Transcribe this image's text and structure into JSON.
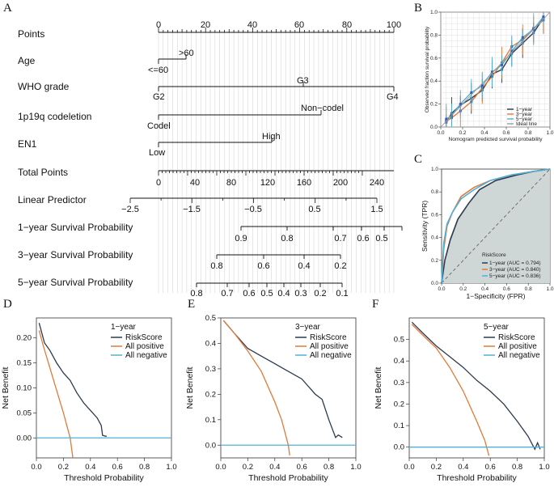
{
  "panels": {
    "A": "A",
    "B": "B",
    "C": "C",
    "D": "D",
    "E": "E",
    "F": "F"
  },
  "nomogram": {
    "points": {
      "label": "Points",
      "ticks": [
        "0",
        "20",
        "40",
        "60",
        "80",
        "100"
      ]
    },
    "age": {
      "label": "Age",
      "levels": [
        ">60",
        "<=60"
      ]
    },
    "who": {
      "label": "WHO grade",
      "levels": [
        "G2",
        "G3",
        "G4"
      ]
    },
    "codel": {
      "label": "1p19q codeletion",
      "levels": [
        "Codel",
        "Non−codel"
      ]
    },
    "en1": {
      "label": "EN1",
      "levels": [
        "Low",
        "High"
      ]
    },
    "total": {
      "label": "Total Points",
      "ticks": [
        "0",
        "40",
        "80",
        "120",
        "160",
        "200",
        "240"
      ]
    },
    "linear": {
      "label": "Linear Predictor",
      "ticks": [
        "−2.5",
        "−1.5",
        "−0.5",
        "0.5",
        "1.5"
      ]
    },
    "surv1": {
      "label": "1−year Survival Probability",
      "ticks": [
        "0.9",
        "0.8",
        "0.7",
        "0.6",
        "0.5"
      ]
    },
    "surv3": {
      "label": "3−year Survival Probability",
      "ticks": [
        "0.8",
        "0.6",
        "0.4",
        "0.2"
      ]
    },
    "surv5": {
      "label": "5−year Survival Probability",
      "ticks": [
        "0.8",
        "0.7",
        "0.6",
        "0.5",
        "0.4",
        "0.3",
        "0.2",
        "0.1"
      ]
    }
  },
  "chart_data": [
    {
      "id": "B",
      "type": "line",
      "title": "",
      "xlabel": "Nomogram predicted survival probability",
      "ylabel": "Observed fraction survival probability",
      "xlim": [
        0,
        1
      ],
      "ylim": [
        0,
        1
      ],
      "xticks": [
        "0.0",
        "0.2",
        "0.4",
        "0.6",
        "0.8",
        "1.0"
      ],
      "yticks": [
        "0.0",
        "0.2",
        "0.4",
        "0.6",
        "0.8",
        "1.0"
      ],
      "legend": [
        "1−year",
        "3−year",
        "5−year",
        "Ideal line"
      ],
      "series": [
        {
          "name": "1−year",
          "color": "#2b3a4d",
          "x": [
            0.05,
            0.1,
            0.18,
            0.28,
            0.38,
            0.47,
            0.56,
            0.65,
            0.75,
            0.85,
            0.94
          ],
          "y": [
            0.04,
            0.12,
            0.19,
            0.25,
            0.32,
            0.46,
            0.5,
            0.64,
            0.73,
            0.82,
            0.95
          ]
        },
        {
          "name": "3−year",
          "color": "#e07b39",
          "x": [
            0.05,
            0.1,
            0.18,
            0.28,
            0.38,
            0.47,
            0.56,
            0.65,
            0.75,
            0.85,
            0.94
          ],
          "y": [
            0.05,
            0.08,
            0.14,
            0.22,
            0.34,
            0.44,
            0.56,
            0.7,
            0.76,
            0.86,
            0.93
          ]
        },
        {
          "name": "5−year",
          "color": "#4fb0d8",
          "x": [
            0.05,
            0.1,
            0.18,
            0.28,
            0.38,
            0.47,
            0.56,
            0.65,
            0.75,
            0.85,
            0.94
          ],
          "y": [
            0.07,
            0.1,
            0.2,
            0.3,
            0.36,
            0.48,
            0.54,
            0.66,
            0.78,
            0.85,
            0.96
          ]
        },
        {
          "name": "Ideal line",
          "color": "#999999",
          "x": [
            0,
            1
          ],
          "y": [
            0,
            1
          ]
        }
      ]
    },
    {
      "id": "C",
      "type": "line",
      "title": "",
      "xlabel": "1−Specificity (FPR)",
      "ylabel": "Sensitivity (TPR)",
      "xlim": [
        0,
        1
      ],
      "ylim": [
        0,
        1
      ],
      "xticks": [
        "0.0",
        "0.2",
        "0.4",
        "0.6",
        "0.8",
        "1.0"
      ],
      "yticks": [
        "0.0",
        "0.2",
        "0.4",
        "0.6",
        "0.8",
        "1.0"
      ],
      "legend_title": "RiskScore",
      "series": [
        {
          "name": "1−year (AUC = 0.794)",
          "color": "#2b3a4d",
          "x": [
            0,
            0.03,
            0.08,
            0.15,
            0.25,
            0.35,
            0.5,
            0.7,
            0.85,
            1.0
          ],
          "y": [
            0,
            0.2,
            0.38,
            0.56,
            0.7,
            0.82,
            0.9,
            0.95,
            0.98,
            1.0
          ]
        },
        {
          "name": "3−year (AUC = 0.840)",
          "color": "#e07b39",
          "x": [
            0,
            0.02,
            0.05,
            0.1,
            0.18,
            0.3,
            0.45,
            0.65,
            0.85,
            1.0
          ],
          "y": [
            0,
            0.3,
            0.5,
            0.62,
            0.76,
            0.84,
            0.9,
            0.95,
            0.98,
            1.0
          ]
        },
        {
          "name": "5−year (AUC = 0.836)",
          "color": "#4fb0d8",
          "x": [
            0,
            0.02,
            0.05,
            0.1,
            0.18,
            0.3,
            0.45,
            0.65,
            0.85,
            1.0
          ],
          "y": [
            0,
            0.35,
            0.52,
            0.62,
            0.74,
            0.82,
            0.9,
            0.95,
            0.98,
            1.0
          ]
        }
      ]
    },
    {
      "id": "D",
      "type": "line",
      "title": "1−year",
      "xlabel": "Threshold Probability",
      "ylabel": "Net Benefit",
      "xlim": [
        0,
        1
      ],
      "ylim": [
        -0.04,
        0.24
      ],
      "xticks": [
        0,
        0.2,
        0.4,
        0.6,
        0.8,
        1.0
      ],
      "yticks": [
        0,
        0.05,
        0.1,
        0.15,
        0.2
      ],
      "series": [
        {
          "name": "RiskScore",
          "color": "#2b3a4d",
          "x": [
            0.02,
            0.06,
            0.1,
            0.15,
            0.2,
            0.25,
            0.3,
            0.35,
            0.4,
            0.45,
            0.48,
            0.49,
            0.52
          ],
          "y": [
            0.23,
            0.19,
            0.175,
            0.15,
            0.13,
            0.115,
            0.09,
            0.07,
            0.055,
            0.04,
            0.025,
            0.005,
            0.003
          ]
        },
        {
          "name": "All positive",
          "color": "#e07b39",
          "x": [
            0.02,
            0.05,
            0.1,
            0.15,
            0.2,
            0.25,
            0.27
          ],
          "y": [
            0.215,
            0.185,
            0.14,
            0.095,
            0.05,
            0.0,
            -0.04
          ]
        },
        {
          "name": "All negative",
          "color": "#4fb0d8",
          "x": [
            0,
            1
          ],
          "y": [
            0,
            0
          ]
        }
      ]
    },
    {
      "id": "E",
      "type": "line",
      "title": "3−year",
      "xlabel": "Threshold Probability",
      "ylabel": "Net Benefit",
      "xlim": [
        0,
        1
      ],
      "ylim": [
        -0.05,
        0.5
      ],
      "xticks": [
        0,
        0.2,
        0.4,
        0.6,
        0.8,
        1.0
      ],
      "yticks": [
        0,
        0.1,
        0.2,
        0.3,
        0.4,
        0.5
      ],
      "series": [
        {
          "name": "RiskScore",
          "color": "#2b3a4d",
          "x": [
            0.02,
            0.1,
            0.2,
            0.3,
            0.4,
            0.5,
            0.6,
            0.7,
            0.75,
            0.8,
            0.85,
            0.87,
            0.9
          ],
          "y": [
            0.49,
            0.44,
            0.38,
            0.35,
            0.32,
            0.29,
            0.26,
            0.2,
            0.18,
            0.1,
            0.03,
            0.04,
            0.03
          ]
        },
        {
          "name": "All positive",
          "color": "#e07b39",
          "x": [
            0.02,
            0.1,
            0.2,
            0.3,
            0.4,
            0.45,
            0.5,
            0.51
          ],
          "y": [
            0.49,
            0.44,
            0.37,
            0.29,
            0.17,
            0.1,
            0.0,
            -0.04
          ]
        },
        {
          "name": "All negative",
          "color": "#4fb0d8",
          "x": [
            0,
            1
          ],
          "y": [
            0,
            0
          ]
        }
      ]
    },
    {
      "id": "F",
      "type": "line",
      "title": "5−year",
      "xlabel": "Threshold Probability",
      "ylabel": "Net Benefit",
      "xlim": [
        0,
        1
      ],
      "ylim": [
        -0.05,
        0.6
      ],
      "xticks": [
        0,
        0.2,
        0.4,
        0.6,
        0.8,
        1.0
      ],
      "yticks": [
        0,
        0.1,
        0.2,
        0.3,
        0.4,
        0.5
      ],
      "series": [
        {
          "name": "RiskScore",
          "color": "#2b3a4d",
          "x": [
            0.02,
            0.1,
            0.2,
            0.3,
            0.4,
            0.5,
            0.6,
            0.7,
            0.8,
            0.88,
            0.93,
            0.95,
            0.97
          ],
          "y": [
            0.58,
            0.53,
            0.47,
            0.42,
            0.37,
            0.31,
            0.26,
            0.2,
            0.12,
            0.05,
            -0.01,
            0.02,
            -0.01
          ]
        },
        {
          "name": "All positive",
          "color": "#e07b39",
          "x": [
            0.02,
            0.1,
            0.2,
            0.3,
            0.4,
            0.5,
            0.56,
            0.59
          ],
          "y": [
            0.57,
            0.52,
            0.46,
            0.37,
            0.26,
            0.12,
            0.03,
            -0.04
          ]
        },
        {
          "name": "All negative",
          "color": "#4fb0d8",
          "x": [
            0,
            1
          ],
          "y": [
            0,
            0
          ]
        }
      ]
    }
  ]
}
